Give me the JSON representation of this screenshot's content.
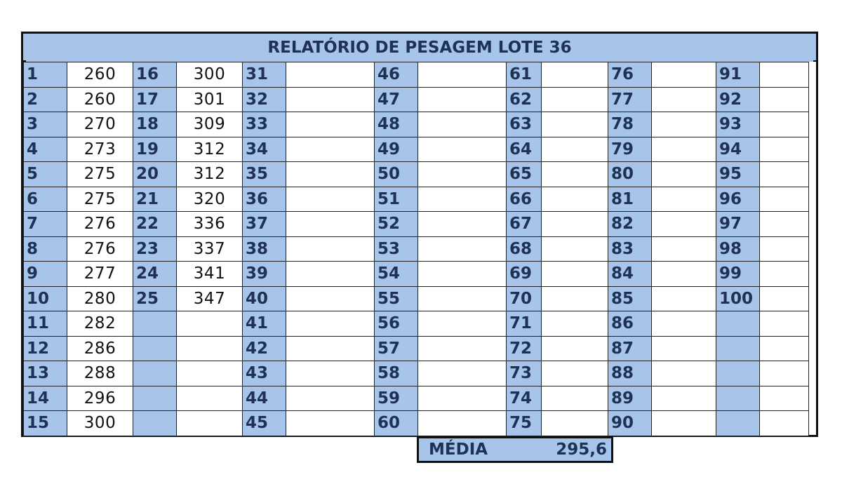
{
  "title": "RELATÓRIO DE PESAGEM LOTE 36",
  "columns": [
    {
      "numbers": [
        "1",
        "2",
        "3",
        "4",
        "5",
        "6",
        "7",
        "8",
        "9",
        "10",
        "11",
        "12",
        "13",
        "14",
        "15"
      ],
      "weights": [
        "260",
        "260",
        "270",
        "273",
        "275",
        "275",
        "276",
        "276",
        "277",
        "280",
        "282",
        "286",
        "288",
        "296",
        "300"
      ]
    },
    {
      "numbers": [
        "16",
        "17",
        "18",
        "19",
        "20",
        "21",
        "22",
        "23",
        "24",
        "25",
        "",
        "",
        "",
        "",
        ""
      ],
      "weights": [
        "300",
        "301",
        "309",
        "312",
        "312",
        "320",
        "336",
        "337",
        "341",
        "347",
        "",
        "",
        "",
        "",
        ""
      ]
    },
    {
      "numbers": [
        "31",
        "32",
        "33",
        "34",
        "35",
        "36",
        "37",
        "38",
        "39",
        "40",
        "41",
        "42",
        "43",
        "44",
        "45"
      ],
      "weights": [
        "",
        "",
        "",
        "",
        "",
        "",
        "",
        "",
        "",
        "",
        "",
        "",
        "",
        "",
        ""
      ]
    },
    {
      "numbers": [
        "46",
        "47",
        "48",
        "49",
        "50",
        "51",
        "52",
        "53",
        "54",
        "55",
        "56",
        "57",
        "58",
        "59",
        "60"
      ],
      "weights": [
        "",
        "",
        "",
        "",
        "",
        "",
        "",
        "",
        "",
        "",
        "",
        "",
        "",
        "",
        ""
      ]
    },
    {
      "numbers": [
        "61",
        "62",
        "63",
        "64",
        "65",
        "66",
        "67",
        "68",
        "69",
        "70",
        "71",
        "72",
        "73",
        "74",
        "75"
      ],
      "weights": [
        "",
        "",
        "",
        "",
        "",
        "",
        "",
        "",
        "",
        "",
        "",
        "",
        "",
        "",
        ""
      ]
    },
    {
      "numbers": [
        "76",
        "77",
        "78",
        "79",
        "80",
        "81",
        "82",
        "83",
        "84",
        "85",
        "86",
        "87",
        "88",
        "89",
        "90"
      ],
      "weights": [
        "",
        "",
        "",
        "",
        "",
        "",
        "",
        "",
        "",
        "",
        "",
        "",
        "",
        "",
        ""
      ]
    },
    {
      "numbers": [
        "91",
        "92",
        "93",
        "94",
        "95",
        "96",
        "97",
        "98",
        "99",
        "100",
        "",
        "",
        "",
        "",
        ""
      ],
      "weights": [
        "",
        "",
        "",
        "",
        "",
        "",
        "",
        "",
        "",
        "",
        "",
        "",
        "",
        "",
        ""
      ]
    }
  ],
  "media": {
    "label": "MÉDIA",
    "value": "295,6"
  },
  "colors": {
    "header_fill": "#a7c5ea",
    "header_text": "#1f3255",
    "border": "#111111"
  }
}
